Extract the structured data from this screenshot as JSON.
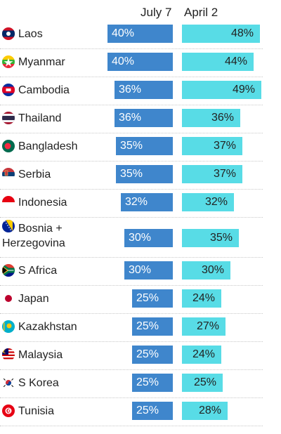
{
  "chart_data": {
    "type": "bar",
    "orientation": "horizontal",
    "series": [
      {
        "name": "July 7",
        "color": "#3f86cc",
        "values": [
          40,
          40,
          36,
          36,
          35,
          35,
          32,
          30,
          30,
          25,
          25,
          25,
          25,
          25
        ]
      },
      {
        "name": "April 2",
        "color": "#58dce6",
        "values": [
          48,
          44,
          49,
          36,
          37,
          37,
          32,
          35,
          30,
          24,
          27,
          24,
          25,
          28
        ]
      }
    ],
    "categories": [
      "Laos",
      "Myanmar",
      "Cambodia",
      "Thailand",
      "Bangladesh",
      "Serbia",
      "Indonesia",
      "Bosnia +\nHerzegovina",
      "S Africa",
      "Japan",
      "Kazakhstan",
      "Malaysia",
      "S Korea",
      "Tunisia"
    ],
    "flags": [
      "laos-flag-icon",
      "myanmar-flag-icon",
      "cambodia-flag-icon",
      "thailand-flag-icon",
      "bangladesh-flag-icon",
      "serbia-flag-icon",
      "indonesia-flag-icon",
      "bosnia-flag-icon",
      "south-africa-flag-icon",
      "japan-flag-icon",
      "kazakhstan-flag-icon",
      "malaysia-flag-icon",
      "south-korea-flag-icon",
      "tunisia-flag-icon"
    ],
    "value_suffix": "%",
    "xlim": [
      0,
      50
    ],
    "grid": false,
    "legend": "top (column headers)"
  }
}
